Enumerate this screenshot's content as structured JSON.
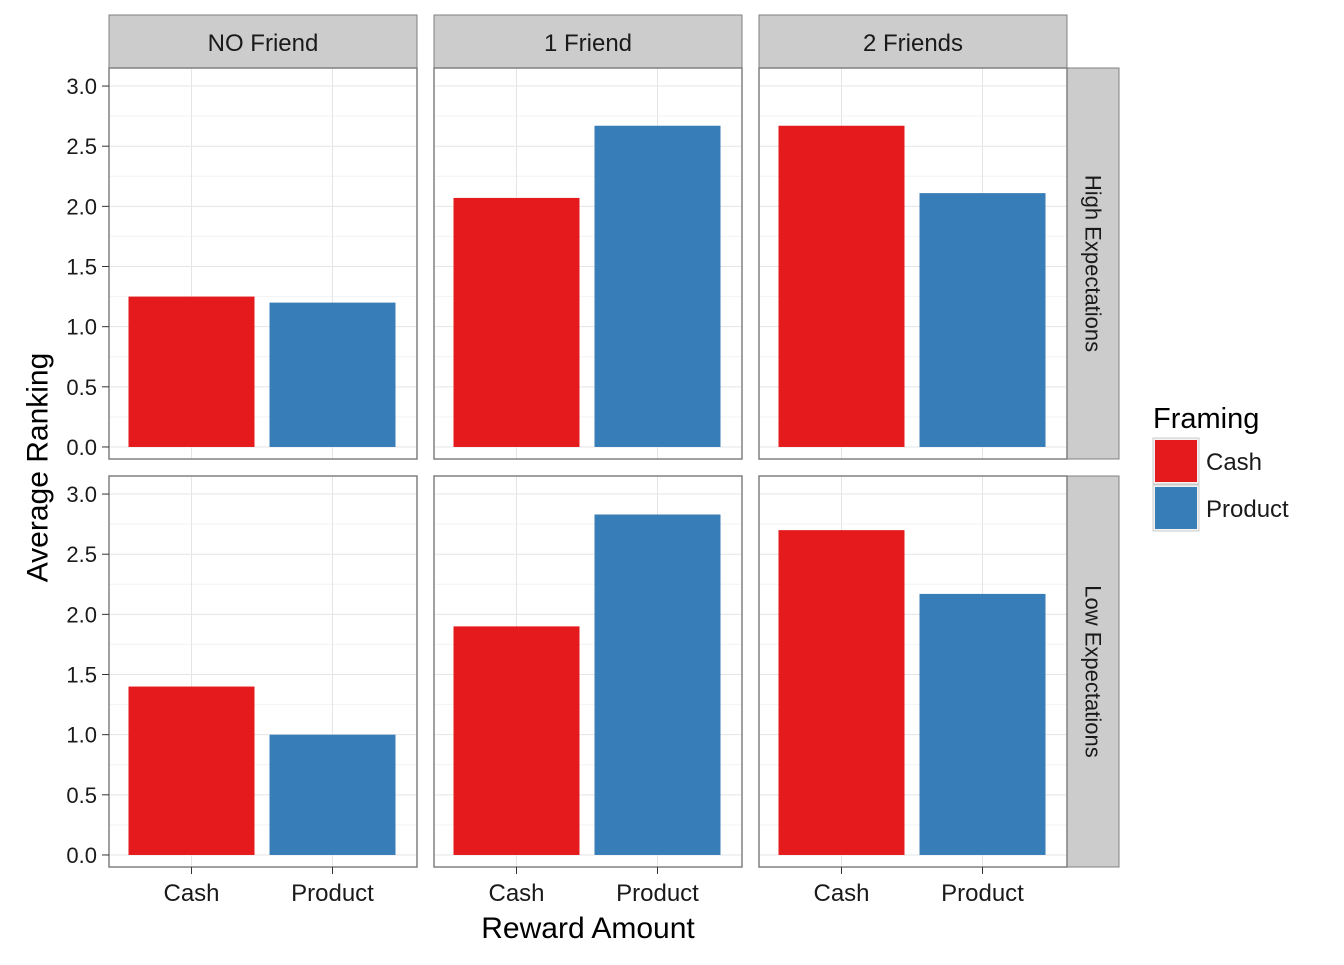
{
  "chart_data": {
    "type": "bar",
    "xlabel": "Reward Amount",
    "ylabel": "Average Ranking",
    "ylim": [
      -0.1,
      3.15
    ],
    "yticks": [
      "0.0",
      "0.5",
      "1.0",
      "1.5",
      "2.0",
      "2.5",
      "3.0"
    ],
    "ytick_values": [
      0,
      0.5,
      1,
      1.5,
      2,
      2.5,
      3
    ],
    "categories": [
      "Cash",
      "Product"
    ],
    "column_facets": [
      "NO Friend",
      "1 Friend",
      "2 Friends"
    ],
    "row_facets": [
      "High Expectations",
      "Low Expectations"
    ],
    "legend": {
      "title": "Framing",
      "position": "right",
      "entries": [
        {
          "label": "Cash",
          "color": "#E41A1C"
        },
        {
          "label": "Product",
          "color": "#377EB8"
        }
      ]
    },
    "grid": true,
    "panels": [
      {
        "row": "High Expectations",
        "col": "NO Friend",
        "values": [
          1.25,
          1.2
        ]
      },
      {
        "row": "High Expectations",
        "col": "1 Friend",
        "values": [
          2.07,
          2.67
        ]
      },
      {
        "row": "High Expectations",
        "col": "2 Friends",
        "values": [
          2.67,
          2.11
        ]
      },
      {
        "row": "Low Expectations",
        "col": "NO Friend",
        "values": [
          1.4,
          1.0
        ]
      },
      {
        "row": "Low Expectations",
        "col": "1 Friend",
        "values": [
          1.9,
          2.83
        ]
      },
      {
        "row": "Low Expectations",
        "col": "2 Friends",
        "values": [
          2.7,
          2.17
        ]
      }
    ]
  }
}
